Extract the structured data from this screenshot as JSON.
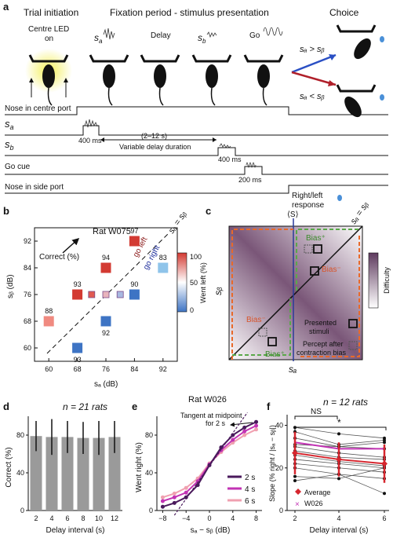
{
  "panel_a": {
    "letter": "a",
    "trial_initiation": "Trial initiation",
    "fixation_title": "Fixation period - stimulus presentation",
    "choice": "Choice",
    "centre_led": "Centre LED",
    "on": "on",
    "sa": "s",
    "sa_sub": "a",
    "sb": "s",
    "sb_sub": "b",
    "delay": "Delay",
    "go": "Go",
    "cmp_gt": "sₐ > sᵦ",
    "cmp_lt": "sₐ < sᵦ",
    "rows": [
      "Nose in centre port",
      "s",
      "s",
      "Go cue",
      "Nose in side port"
    ],
    "row_subs": [
      "",
      "a",
      "b",
      "",
      ""
    ],
    "t400a": "400 ms",
    "t2_12": "(2–12 s)",
    "variable_delay": "Variable delay duration",
    "t400b": "400 ms",
    "t200": "200 ms",
    "response": [
      "Right/left",
      "response"
    ]
  },
  "panel_b": {
    "letter": "b",
    "title": "Rat W075",
    "correct_label": "Correct (%)",
    "go_left": "go left",
    "go_right": "go right",
    "diag_label": "sₐ = sᵦ",
    "xlabel": "sₐ (dB)",
    "ylabel": "sᵦ (dB)",
    "x_ticks": [
      "60",
      "68",
      "76",
      "84",
      "92"
    ],
    "y_ticks": [
      "60",
      "68",
      "76",
      "84",
      "92"
    ],
    "colorbar_label": "Went left (%)",
    "colorbar_ticks": [
      "0",
      "50",
      "100"
    ],
    "colors": {
      "red": "#d33a32",
      "blue": "#3e74c4",
      "lightred": "#f08a80",
      "lightblue": "#8fc4ea",
      "pink": "#e8b4bc"
    }
  },
  "panel_c": {
    "letter": "c",
    "top_label": "⟨S⟩",
    "diag_label": "sₐ = sᵦ",
    "xlabel": "sₐ",
    "ylabel": "sᵦ",
    "bias_plus": "Bias⁺",
    "bias_minus": "Bias⁻",
    "legend_presented": [
      "Presented",
      "stimuli"
    ],
    "legend_percept": [
      "Percept after",
      "contraction bias"
    ],
    "difficulty": "Difficulty",
    "colors": {
      "orange": "#e8692a",
      "green": "#5aa84a",
      "gradient": "#5e3a5e"
    }
  },
  "panel_d": {
    "letter": "d",
    "title": "n = 21 rats",
    "ylabel": "Correct (%)",
    "xlabel": "Delay interval (s)",
    "y_ticks": [
      "0",
      "40",
      "80"
    ],
    "bar_color": "#9a9a9a"
  },
  "panel_e": {
    "letter": "e",
    "title": "Rat W026",
    "annotation": [
      "Tangent at midpoint",
      "for 2 s"
    ],
    "ylabel": "Went right (%)",
    "xlabel": "sₐ − sᵦ (dB)",
    "y_ticks": [
      "0",
      "40",
      "80"
    ],
    "x_ticks": [
      "−8",
      "−4",
      "0",
      "4",
      "8"
    ],
    "legend": [
      "2 s",
      "4 s",
      "6 s"
    ],
    "legend_colors": [
      "#4a1a5c",
      "#c233b4",
      "#f0a0b0"
    ]
  },
  "panel_f": {
    "letter": "f",
    "title": "n = 12 rats",
    "ylabel": "Slope (% right / |sₐ − sᵦ|)",
    "xlabel": "Delay interval (s)",
    "y_ticks": [
      "0",
      "20",
      "40"
    ],
    "x_ticks": [
      "2",
      "4",
      "6"
    ],
    "ns": "NS",
    "star": "*",
    "legend_average": "Average",
    "legend_w026": "W026",
    "colors": {
      "average": "#d6262e",
      "w026": "#c233b4"
    }
  },
  "chart_data": [
    {
      "type": "heatmap",
      "title": "Rat W075",
      "xlabel": "sₐ (dB)",
      "ylabel": "sᵦ (dB)",
      "xlim": [
        56,
        96
      ],
      "ylim": [
        56,
        96
      ],
      "points": [
        {
          "x": 60,
          "y": 68,
          "label": "88",
          "color": "#f08a80"
        },
        {
          "x": 68,
          "y": 60,
          "label": "93",
          "color": "#3e74c4"
        },
        {
          "x": 68,
          "y": 76,
          "label": "93",
          "color": "#d33a32"
        },
        {
          "x": 72,
          "y": 76,
          "label": "",
          "color": "#e05a52"
        },
        {
          "x": 76,
          "y": 68,
          "label": "92",
          "color": "#3e74c4"
        },
        {
          "x": 76,
          "y": 76,
          "label": "",
          "color": "#e8b4bc"
        },
        {
          "x": 76,
          "y": 84,
          "label": "94",
          "color": "#d33a32"
        },
        {
          "x": 80,
          "y": 76,
          "label": "",
          "color": "#a8b8e0"
        },
        {
          "x": 84,
          "y": 76,
          "label": "90",
          "color": "#3e74c4"
        },
        {
          "x": 84,
          "y": 92,
          "label": "97",
          "color": "#d33a32"
        },
        {
          "x": 92,
          "y": 84,
          "label": "83",
          "color": "#8fc4ea"
        }
      ]
    },
    {
      "type": "bar",
      "title": "n = 21 rats",
      "categories": [
        "2",
        "4",
        "6",
        "8",
        "10",
        "12"
      ],
      "values": [
        79,
        78,
        78,
        77,
        77,
        78
      ],
      "errors": [
        16,
        19,
        17,
        17,
        18,
        17
      ],
      "ylim": [
        0,
        100
      ],
      "xlabel": "Delay interval (s)",
      "ylabel": "Correct (%)"
    },
    {
      "type": "line",
      "title": "Rat W026",
      "x": [
        -8,
        -6,
        -4,
        -2,
        0,
        2,
        4,
        6,
        8
      ],
      "xlim": [
        -9,
        9
      ],
      "ylim": [
        0,
        100
      ],
      "series": [
        {
          "name": "2 s",
          "values": [
            4,
            8,
            14,
            27,
            48,
            67,
            80,
            88,
            94
          ]
        },
        {
          "name": "4 s",
          "values": [
            10,
            14,
            19,
            31,
            49,
            64,
            75,
            84,
            90
          ]
        },
        {
          "name": "6 s",
          "values": [
            14,
            18,
            24,
            34,
            50,
            62,
            72,
            80,
            86
          ]
        }
      ],
      "xlabel": "sₐ − sᵦ (dB)",
      "ylabel": "Went right (%)"
    },
    {
      "type": "line",
      "title": "n = 12 rats",
      "x": [
        2,
        4,
        6
      ],
      "ylim": [
        0,
        45
      ],
      "rats": [
        [
          39,
          36,
          34
        ],
        [
          37,
          31,
          33
        ],
        [
          34,
          30,
          32
        ],
        [
          31,
          30,
          29
        ],
        [
          30,
          27,
          25
        ],
        [
          28,
          25,
          24
        ],
        [
          26,
          23,
          21
        ],
        [
          24,
          22,
          20
        ],
        [
          22,
          20,
          18
        ],
        [
          20,
          17,
          15
        ],
        [
          14,
          17,
          8
        ],
        [
          16,
          15,
          20
        ]
      ],
      "average": [
        27,
        24,
        22
      ],
      "average_err": [
        10,
        8,
        9
      ],
      "w026": [
        32,
        29,
        29
      ],
      "xlabel": "Delay interval (s)",
      "ylabel": "Slope (% right / |sₐ − sᵦ|)"
    }
  ]
}
